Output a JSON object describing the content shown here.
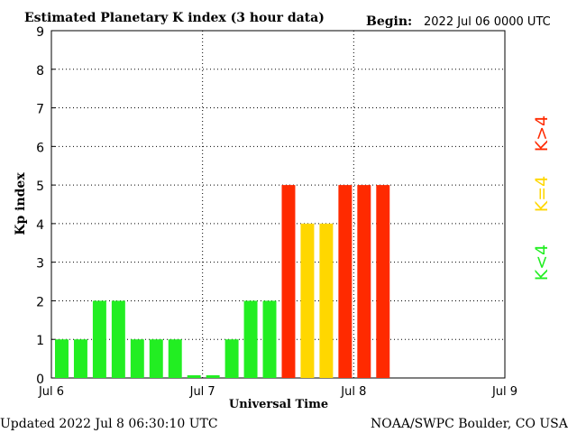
{
  "header": {
    "title": "Estimated Planetary K index (3 hour data)",
    "begin_label": "Begin:",
    "begin_value": "2022 Jul 06 0000 UTC"
  },
  "footer": {
    "updated": "Updated 2022 Jul  8 06:30:10 UTC",
    "source": "NOAA/SWPC Boulder, CO USA"
  },
  "legend": {
    "items": [
      {
        "label": "K>4",
        "color": "#ff2a00"
      },
      {
        "label": "K=4",
        "color": "#ffd700"
      },
      {
        "label": "K<4",
        "color": "#22ee22"
      }
    ]
  },
  "chart_data": {
    "type": "bar",
    "title": "Estimated Planetary K index (3 hour data)",
    "xlabel": "Universal Time",
    "ylabel": "Kp index",
    "ylim": [
      0,
      9
    ],
    "xlim_days": [
      0,
      3
    ],
    "grid": "dotted, major ticks",
    "yticks": [
      "0",
      "1",
      "2",
      "3",
      "4",
      "5",
      "6",
      "7",
      "8",
      "9"
    ],
    "xticks": [
      "Jul 6",
      "Jul 7",
      "Jul 8",
      "Jul 9"
    ],
    "interval_hours": 3,
    "start": "2022 Jul 06 0000 UTC",
    "values": [
      1,
      1,
      2,
      2,
      1,
      1,
      1,
      0.07,
      0.07,
      1,
      2,
      2,
      5,
      4,
      4,
      5,
      5,
      5
    ],
    "colors": {
      "below4": "#22ee22",
      "equal4": "#ffd700",
      "above4": "#ff2a00"
    }
  }
}
